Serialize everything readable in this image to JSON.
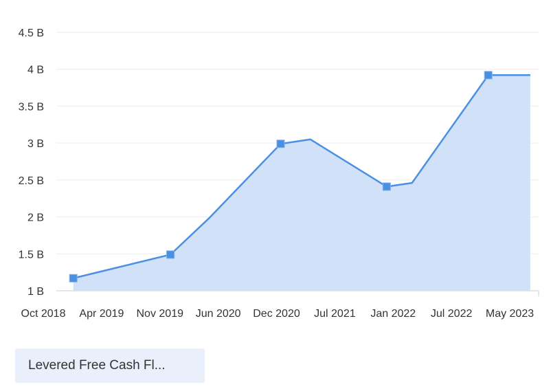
{
  "chart_data": {
    "type": "area",
    "x": [
      "2018-12-01",
      "2019-11-15",
      "2020-04-01",
      "2020-12-15",
      "2021-04-01",
      "2021-12-31",
      "2022-04-01",
      "2022-12-31",
      "2023-05-31"
    ],
    "series": [
      {
        "values": [
          1.17,
          1.49,
          1.98,
          2.99,
          3.05,
          2.41,
          2.46,
          3.92,
          3.92
        ]
      }
    ],
    "markers": [
      0,
      1,
      3,
      5,
      7
    ],
    "xticks": [
      "Oct 2018",
      "Apr 2019",
      "Nov 2019",
      "Jun 2020",
      "Dec 2020",
      "Jul 2021",
      "Jan 2022",
      "Jul 2022",
      "May 2023"
    ],
    "yticks": [
      "1 B",
      "1.5 B",
      "2 B",
      "2.5 B",
      "3 B",
      "3.5 B",
      "4 B",
      "4.5 B"
    ],
    "ylim": [
      1,
      4.5
    ],
    "xlim": [
      "2018-10-01",
      "2023-06-30"
    ],
    "grid": true,
    "line_color": "#4a90e2",
    "fill_color": "#d1e1f7",
    "grid_color": "#eeeeee"
  },
  "legend": {
    "series_tab_label": "Levered Free Cash Fl..."
  }
}
